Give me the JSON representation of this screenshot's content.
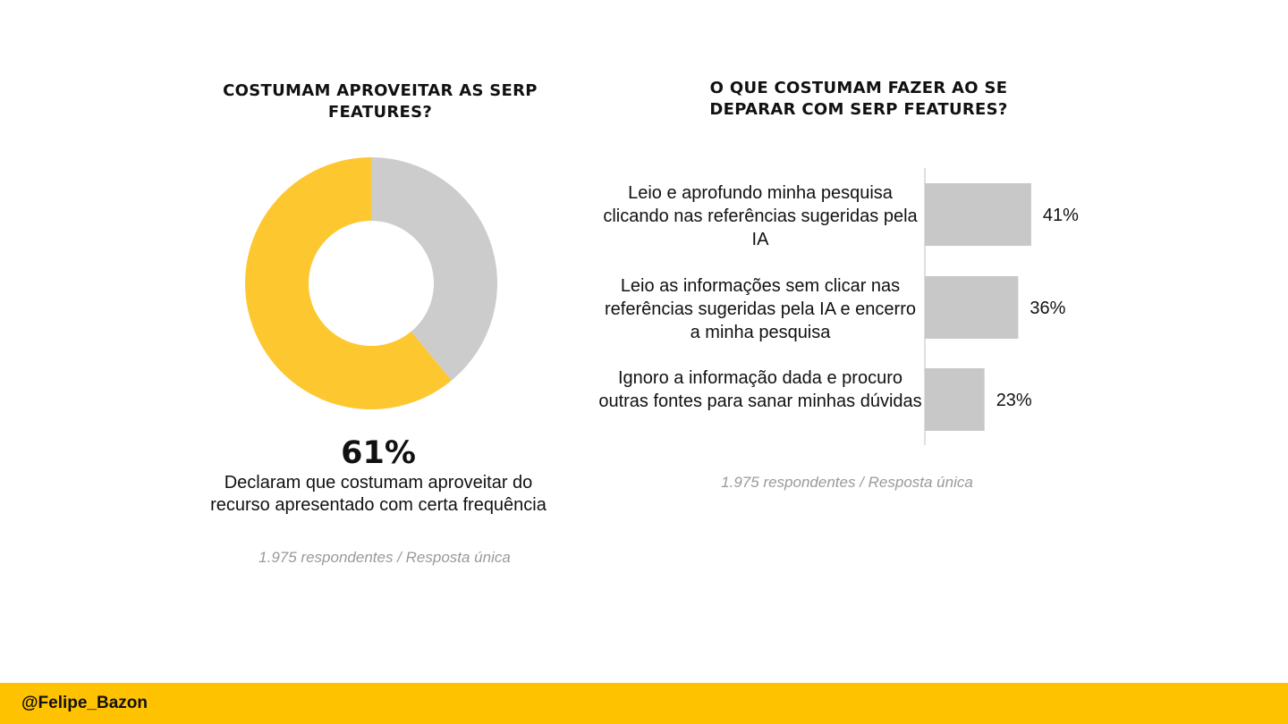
{
  "left_panel": {
    "title": "COSTUMAM APROVEITAR AS SERP FEATURES?",
    "highlight_value": "61%",
    "highlight_text": "Declaram que costumam aproveitar do recurso apresentado com certa frequência",
    "note": "1.975 respondentes / Resposta única"
  },
  "right_panel": {
    "title": "O QUE COSTUMAM FAZER AO SE DEPARAR COM SERP FEATURES?",
    "note": "1.975 respondentes / Resposta única"
  },
  "footer": {
    "handle": "@Felipe_Bazon"
  },
  "colors": {
    "yellow": "#fdc72f",
    "gray": "#cccccc",
    "bar_gray": "#c8c8c8",
    "footer": "#ffc200"
  },
  "chart_data": [
    {
      "type": "pie",
      "variant": "donut",
      "title": "COSTUMAM APROVEITAR AS SERP FEATURES?",
      "slices": [
        {
          "label": "",
          "value": 61,
          "color": "#fdc72f"
        },
        {
          "label": "",
          "value": 39,
          "color": "#cccccc"
        }
      ],
      "legend": "none"
    },
    {
      "type": "bar",
      "orientation": "horizontal",
      "title": "O QUE COSTUMAM FAZER AO SE DEPARAR COM SERP FEATURES?",
      "categories": [
        "Leio e aprofundo minha pesquisa clicando nas referências sugeridas pela IA",
        "Leio as informações sem clicar nas referências sugeridas pela IA e encerro a minha pesquisa",
        "Ignoro a informação dada e procuro outras fontes para sanar minhas dúvidas"
      ],
      "values": [
        41,
        36,
        23
      ],
      "value_labels": [
        "41%",
        "36%",
        "23%"
      ],
      "unit": "%",
      "xlim": [
        0,
        100
      ],
      "grid": false,
      "legend": "none"
    }
  ]
}
